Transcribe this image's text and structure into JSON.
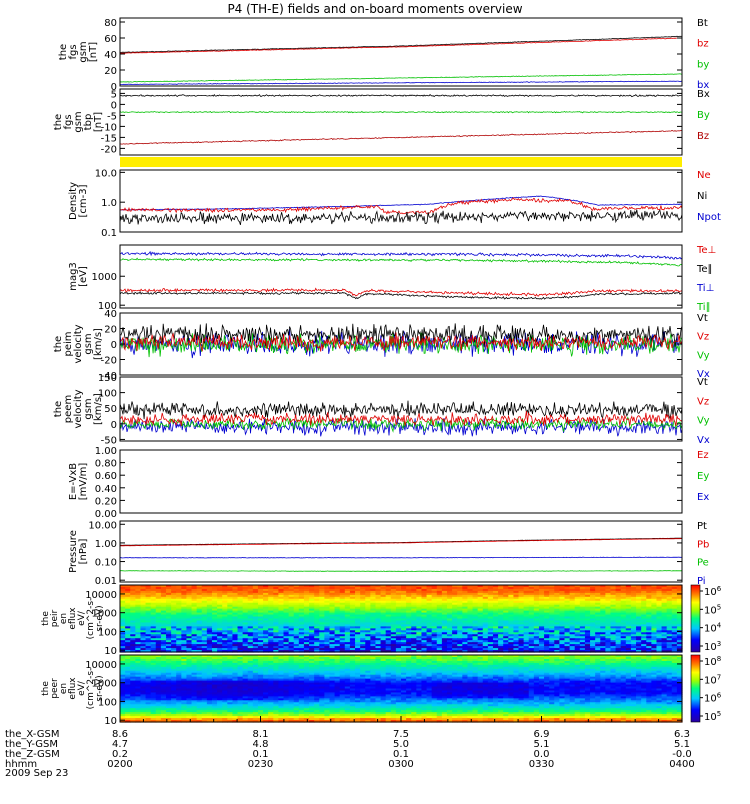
{
  "chart_data": {
    "type": "line",
    "title": "P4 (TH-E) fields and on-board moments overview",
    "date": "2009 Sep 23",
    "x_axis": {
      "rows": [
        {
          "label": "the_X-GSM",
          "values": [
            "8.6",
            "8.1",
            "7.5",
            "6.9",
            "6.3"
          ]
        },
        {
          "label": "the_Y-GSM",
          "values": [
            "4.7",
            "4.8",
            "5.0",
            "5.1",
            "5.1"
          ]
        },
        {
          "label": "the_Z-GSM",
          "values": [
            "0.2",
            "0.1",
            "0.1",
            "0.0",
            "-0.0"
          ]
        },
        {
          "label": "hhmm",
          "values": [
            "0200",
            "0230",
            "0300",
            "0330",
            "0400"
          ]
        }
      ]
    },
    "panels": [
      {
        "id": "fgs-total",
        "ylabel": [
          "the",
          "fgs",
          "gsm",
          "[nT]"
        ],
        "scale": "linear",
        "ylim": [
          0,
          85
        ],
        "ticks": [
          "0",
          "20",
          "40",
          "60",
          "80"
        ],
        "legend": [
          {
            "name": "Bt",
            "color": "#000000"
          },
          {
            "name": "bz",
            "color": "#e00000"
          },
          {
            "name": "by",
            "color": "#00c000"
          },
          {
            "name": "bx",
            "color": "#0000d0"
          }
        ],
        "series": [
          {
            "name": "Bt",
            "color": "#000000",
            "t": [
              0,
              0.5,
              1
            ],
            "v": [
              42,
              50,
              62
            ],
            "noise": 0.3
          },
          {
            "name": "bz",
            "color": "#e00000",
            "t": [
              0,
              0.5,
              1
            ],
            "v": [
              41,
              49,
              60
            ],
            "noise": 0.3
          },
          {
            "name": "by",
            "color": "#00c000",
            "t": [
              0,
              0.5,
              1
            ],
            "v": [
              5,
              10,
              15
            ],
            "noise": 0.3
          },
          {
            "name": "bx",
            "color": "#0000d0",
            "t": [
              0,
              0.5,
              1
            ],
            "v": [
              2,
              4,
              6
            ],
            "noise": 0.3
          }
        ]
      },
      {
        "id": "fgs-tbp",
        "ylabel": [
          "the",
          "fgs",
          "gsm",
          "tbp",
          "[nT]"
        ],
        "scale": "linear",
        "ylim": [
          -23,
          7
        ],
        "ticks": [
          "-20",
          "-15",
          "-10",
          "-5",
          "0",
          "5"
        ],
        "legend": [
          {
            "name": "Bx",
            "color": "#000000"
          },
          {
            "name": "By",
            "color": "#00c000"
          },
          {
            "name": "Bz",
            "color": "#b00000"
          }
        ],
        "series": [
          {
            "name": "Bx",
            "color": "#000000",
            "t": [
              0,
              1
            ],
            "v": [
              4,
              4
            ],
            "noise": 0.3
          },
          {
            "name": "By",
            "color": "#00c000",
            "t": [
              0,
              1
            ],
            "v": [
              -3.5,
              -3.5
            ],
            "noise": 0.2
          },
          {
            "name": "Bz",
            "color": "#b00000",
            "t": [
              0,
              1
            ],
            "v": [
              -18,
              -12
            ],
            "noise": 0.2
          }
        ]
      },
      {
        "id": "density",
        "ylabel": [
          "Density",
          "[cm-3]"
        ],
        "scale": "log",
        "ylim": [
          0.1,
          12
        ],
        "ticks": [
          "0.1",
          "1.0",
          "10.0"
        ],
        "legend": [
          {
            "name": "Ne",
            "color": "#e00000"
          },
          {
            "name": "Ni",
            "color": "#000000"
          },
          {
            "name": "Npot",
            "color": "#0000d0"
          }
        ],
        "series": [
          {
            "name": "Npot",
            "color": "#0000d0",
            "t": [
              0,
              0.2,
              0.4,
              0.55,
              0.75,
              0.85,
              1
            ],
            "v": [
              0.55,
              0.6,
              0.72,
              0.85,
              1.6,
              0.8,
              0.85
            ],
            "noise": 0.01
          },
          {
            "name": "Ne",
            "color": "#e00000",
            "t": [
              0,
              0.3,
              0.46,
              0.47,
              0.5,
              0.55,
              0.6,
              0.7,
              0.8,
              0.84,
              1
            ],
            "v": [
              0.55,
              0.55,
              0.72,
              0.45,
              0.45,
              0.45,
              0.95,
              1.2,
              1.1,
              0.6,
              0.65
            ],
            "noise": 0.05
          },
          {
            "name": "Ni",
            "color": "#000000",
            "t": [
              0,
              0.5,
              1
            ],
            "v": [
              0.28,
              0.3,
              0.4
            ],
            "noise": 0.15
          }
        ]
      },
      {
        "id": "temperature",
        "ylabel": [
          "mag3",
          "[eV]"
        ],
        "scale": "log",
        "ylim": [
          80,
          12000
        ],
        "ticks": [
          "100",
          "1000"
        ],
        "legend": [
          {
            "name": "Te⊥",
            "color": "#e00000"
          },
          {
            "name": "Te∥",
            "color": "#000000"
          },
          {
            "name": "Ti⊥",
            "color": "#0000d0"
          },
          {
            "name": "Ti∥",
            "color": "#00c000"
          }
        ],
        "series": [
          {
            "name": "Ti⊥",
            "color": "#0000d0",
            "t": [
              0,
              0.6,
              0.9,
              1
            ],
            "v": [
              6000,
              5800,
              5000,
              4200
            ],
            "noise": 0.04
          },
          {
            "name": "Ti∥",
            "color": "#00c000",
            "t": [
              0,
              0.6,
              0.9,
              1
            ],
            "v": [
              3800,
              3600,
              3000,
              2400
            ],
            "noise": 0.03
          },
          {
            "name": "Te⊥",
            "color": "#e00000",
            "t": [
              0,
              0.4,
              0.42,
              0.44,
              0.6,
              0.75,
              0.82,
              0.85,
              1
            ],
            "v": [
              330,
              330,
              220,
              320,
              260,
              230,
              270,
              320,
              310
            ],
            "noise": 0.04
          },
          {
            "name": "Te∥",
            "color": "#000000",
            "t": [
              0,
              0.4,
              0.42,
              0.44,
              0.6,
              0.75,
              0.82,
              0.85,
              1
            ],
            "v": [
              260,
              260,
              170,
              250,
              190,
              170,
              200,
              240,
              260
            ],
            "noise": 0.03
          }
        ]
      },
      {
        "id": "velocity-1",
        "ylabel": [
          "the",
          "peim",
          "velocity",
          "gsm",
          "[km/s]"
        ],
        "scale": "linear",
        "ylim": [
          -40,
          40
        ],
        "ticks": [
          "-40",
          "-20",
          "0",
          "20",
          "40"
        ],
        "legend": [
          {
            "name": "Vt",
            "color": "#000000"
          },
          {
            "name": "Vz",
            "color": "#e00000"
          },
          {
            "name": "Vy",
            "color": "#00c000"
          },
          {
            "name": "Vx",
            "color": "#0000d0"
          }
        ],
        "series": [
          {
            "name": "Vx",
            "color": "#0000d0",
            "t": [
              0,
              1
            ],
            "v": [
              0,
              0
            ],
            "noise": 12
          },
          {
            "name": "Vy",
            "color": "#00c000",
            "t": [
              0,
              1
            ],
            "v": [
              0,
              0
            ],
            "noise": 10
          },
          {
            "name": "Vt",
            "color": "#000000",
            "t": [
              0,
              1
            ],
            "v": [
              12,
              12
            ],
            "noise": 10
          },
          {
            "name": "Vz",
            "color": "#e00000",
            "t": [
              0,
              1
            ],
            "v": [
              2,
              2
            ],
            "noise": 8
          }
        ]
      },
      {
        "id": "velocity-2",
        "ylabel": [
          "the",
          "peem",
          "velocity",
          "gsm",
          "[km/s]"
        ],
        "scale": "linear",
        "ylim": [
          -55,
          150
        ],
        "ticks": [
          "-50",
          "0",
          "50",
          "100",
          "150"
        ],
        "legend": [
          {
            "name": "Vt",
            "color": "#000000"
          },
          {
            "name": "Vz",
            "color": "#e00000"
          },
          {
            "name": "Vy",
            "color": "#00c000"
          },
          {
            "name": "Vx",
            "color": "#0000d0"
          }
        ],
        "series": [
          {
            "name": "Vx",
            "color": "#0000d0",
            "t": [
              0,
              1
            ],
            "v": [
              -10,
              -10
            ],
            "noise": 18
          },
          {
            "name": "Vy",
            "color": "#00c000",
            "t": [
              0,
              1
            ],
            "v": [
              0,
              0
            ],
            "noise": 15
          },
          {
            "name": "Vt",
            "color": "#000000",
            "t": [
              0,
              1
            ],
            "v": [
              45,
              45
            ],
            "noise": 20
          },
          {
            "name": "Vz",
            "color": "#e00000",
            "t": [
              0,
              1
            ],
            "v": [
              15,
              15
            ],
            "noise": 15
          }
        ]
      },
      {
        "id": "efield",
        "ylabel": [
          "E=-VxB",
          "[mV/m]"
        ],
        "scale": "linear",
        "ylim": [
          0,
          1
        ],
        "ticks": [
          "0.00",
          "0.20",
          "0.40",
          "0.60",
          "0.80",
          "1.00"
        ],
        "legend": [
          {
            "name": "Ez",
            "color": "#e00000"
          },
          {
            "name": "Ey",
            "color": "#00c000"
          },
          {
            "name": "Ex",
            "color": "#0000d0"
          }
        ],
        "series": []
      },
      {
        "id": "pressure",
        "ylabel": [
          "Pressure",
          "[nPa]"
        ],
        "scale": "log",
        "ylim": [
          0.008,
          15
        ],
        "ticks": [
          "0.01",
          "0.10",
          "1.00",
          "10.00"
        ],
        "legend": [
          {
            "name": "Pt",
            "color": "#000000"
          },
          {
            "name": "Pb",
            "color": "#e00000"
          },
          {
            "name": "Pe",
            "color": "#00c000"
          },
          {
            "name": "Pi",
            "color": "#0000d0"
          }
        ],
        "series": [
          {
            "name": "Pt",
            "color": "#000000",
            "t": [
              0,
              0.5,
              1
            ],
            "v": [
              0.75,
              1.05,
              1.8
            ],
            "noise": 0.005
          },
          {
            "name": "Pb",
            "color": "#e00000",
            "t": [
              0,
              0.5,
              1
            ],
            "v": [
              0.7,
              1.0,
              1.7
            ],
            "noise": 0.005
          },
          {
            "name": "Pi",
            "color": "#0000d0",
            "t": [
              0,
              0.5,
              1
            ],
            "v": [
              0.16,
              0.16,
              0.17
            ],
            "noise": 0.01
          },
          {
            "name": "Pe",
            "color": "#00c000",
            "t": [
              0,
              0.5,
              1
            ],
            "v": [
              0.032,
              0.03,
              0.032
            ],
            "noise": 0.01
          }
        ]
      }
    ],
    "spectrograms": [
      {
        "id": "peir",
        "ylabel": [
          "the",
          "peir",
          "en",
          "eflux",
          "eV/",
          "(cm^2-s-",
          "sr-eV)"
        ],
        "ylim": [
          8,
          30000
        ],
        "ticks": [
          "10",
          "100",
          "1000",
          "10000"
        ],
        "colorbar_ticks": [
          "10^3",
          "10^4",
          "10^5",
          "10^6"
        ],
        "profile": [
          [
            8,
            0.15
          ],
          [
            20,
            0.2
          ],
          [
            60,
            0.3
          ],
          [
            200,
            0.4
          ],
          [
            800,
            0.5
          ],
          [
            2000,
            0.62
          ],
          [
            6000,
            0.78
          ],
          [
            15000,
            0.9
          ],
          [
            30000,
            0.92
          ]
        ]
      },
      {
        "id": "peer",
        "ylabel": [
          "the",
          "peer",
          "en",
          "eflux",
          "eV/",
          "(cm^2-s-",
          "sr-eV)"
        ],
        "ylim": [
          8,
          30000
        ],
        "ticks": [
          "10",
          "100",
          "1000",
          "10000"
        ],
        "colorbar_ticks": [
          "10^5",
          "10^6",
          "10^7",
          "10^8"
        ],
        "profile": [
          [
            8,
            0.92
          ],
          [
            12,
            0.82
          ],
          [
            20,
            0.6
          ],
          [
            50,
            0.4
          ],
          [
            100,
            0.3
          ],
          [
            300,
            0.18
          ],
          [
            900,
            0.18
          ],
          [
            2500,
            0.32
          ],
          [
            6000,
            0.42
          ],
          [
            15000,
            0.55
          ],
          [
            30000,
            0.62
          ]
        ]
      }
    ]
  }
}
